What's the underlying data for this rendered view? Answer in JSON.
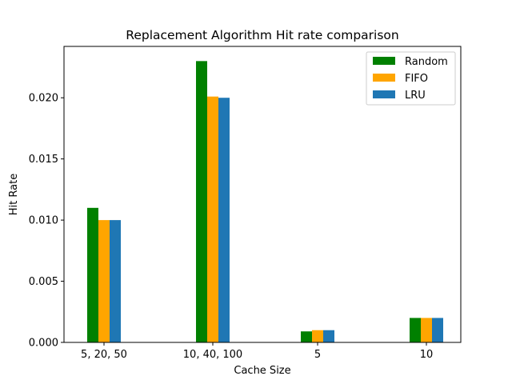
{
  "chart_data": {
    "type": "bar",
    "title": "Replacement Algorithm Hit rate comparison",
    "xlabel": "Cache Size",
    "ylabel": "Hit Rate",
    "categories": [
      "5, 20, 50",
      "10, 40, 100",
      "5",
      "10"
    ],
    "series": [
      {
        "name": "Random",
        "color": "#008000",
        "values": [
          0.011,
          0.023,
          0.0009,
          0.002
        ]
      },
      {
        "name": "FIFO",
        "color": "#ffa500",
        "values": [
          0.01,
          0.0201,
          0.001,
          0.002
        ]
      },
      {
        "name": "LRU",
        "color": "#1f77b4",
        "values": [
          0.01,
          0.02,
          0.001,
          0.002
        ]
      }
    ],
    "ylim": [
      0,
      0.0242
    ],
    "yticks": [
      "0.000",
      "0.005",
      "0.010",
      "0.015",
      "0.020"
    ],
    "ytick_values": [
      0,
      0.005,
      0.01,
      0.015,
      0.02
    ],
    "legend": "top-right",
    "grid": false
  }
}
